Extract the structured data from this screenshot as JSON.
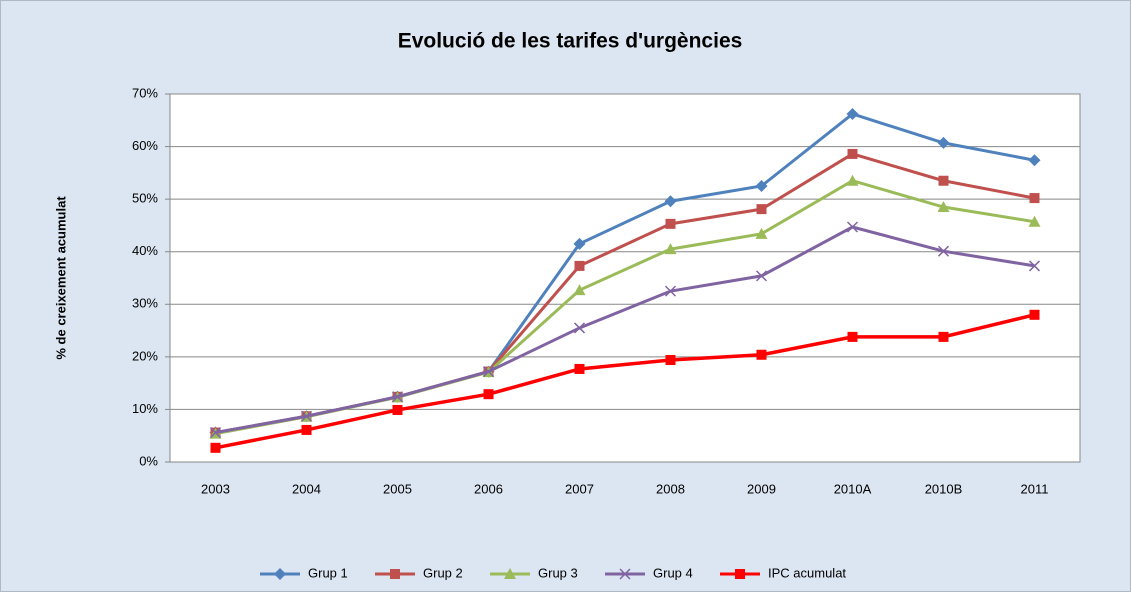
{
  "chart_data": {
    "type": "line",
    "title": "Evolució de les tarifes d'urgències",
    "y_label": "% de creixement acumulat",
    "categories": [
      "2003",
      "2004",
      "2005",
      "2006",
      "2007",
      "2008",
      "2009",
      "2010A",
      "2010B",
      "2011"
    ],
    "series": [
      {
        "name": "Grup 1",
        "color": "#4f81bd",
        "marker": "diamond",
        "values": [
          5.6,
          8.7,
          12.4,
          17.2,
          41.5,
          49.6,
          52.5,
          66.2,
          60.7,
          57.4
        ]
      },
      {
        "name": "Grup 2",
        "color": "#c0504d",
        "marker": "square",
        "values": [
          5.6,
          8.7,
          12.4,
          17.2,
          37.3,
          45.3,
          48.1,
          58.6,
          53.5,
          50.2
        ]
      },
      {
        "name": "Grup 3",
        "color": "#9bbb59",
        "marker": "triangle",
        "values": [
          5.4,
          8.6,
          12.3,
          17.1,
          32.7,
          40.5,
          43.4,
          53.5,
          48.5,
          45.7
        ]
      },
      {
        "name": "Grup 4",
        "color": "#8064a2",
        "marker": "x",
        "values": [
          5.6,
          8.7,
          12.4,
          17.2,
          25.5,
          32.5,
          35.4,
          44.7,
          40.1,
          37.3
        ]
      },
      {
        "name": "IPC acumulat",
        "color": "#ff0000",
        "marker": "square",
        "values": [
          2.7,
          6.1,
          9.9,
          12.9,
          17.7,
          19.4,
          20.4,
          23.8,
          23.8,
          28.0
        ]
      }
    ],
    "ylim": [
      0,
      70
    ],
    "yticks": [
      {
        "value": 0,
        "label": "0%"
      },
      {
        "value": 10,
        "label": "10%"
      },
      {
        "value": 20,
        "label": "20%"
      },
      {
        "value": 30,
        "label": "30%"
      },
      {
        "value": 40,
        "label": "40%"
      },
      {
        "value": 50,
        "label": "50%"
      },
      {
        "value": 60,
        "label": "60%"
      },
      {
        "value": 70,
        "label": "70%"
      }
    ],
    "grid": true,
    "legend": "bottom"
  }
}
